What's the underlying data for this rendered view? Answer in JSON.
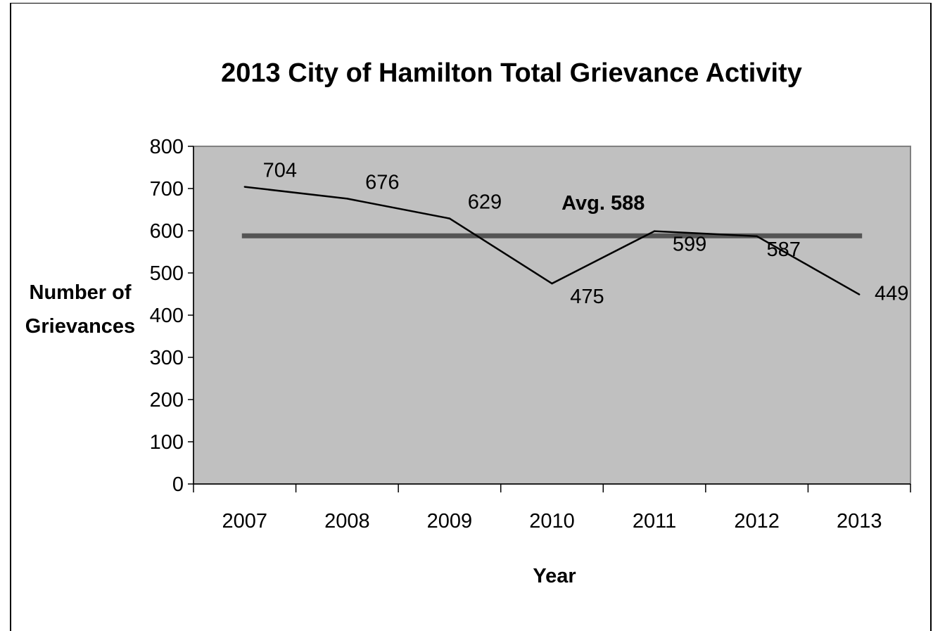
{
  "chart_data": {
    "type": "line",
    "title": "2013 City of Hamilton  Total Grievance Activity",
    "xlabel": "Year",
    "ylabel_lines": [
      "Number of",
      "Grievances"
    ],
    "categories": [
      "2007",
      "2008",
      "2009",
      "2010",
      "2011",
      "2012",
      "2013"
    ],
    "series": [
      {
        "values": [
          704,
          676,
          629,
          475,
          599,
          587,
          449
        ],
        "color": "#000000"
      }
    ],
    "average": {
      "label": "Avg. 588",
      "value": 588,
      "color": "#555555"
    },
    "ylim": [
      0,
      800
    ],
    "yticks": [
      0,
      100,
      200,
      300,
      400,
      500,
      600,
      700,
      800
    ],
    "plot_background": "#c0c0c0",
    "grid": false,
    "legend": "none"
  }
}
